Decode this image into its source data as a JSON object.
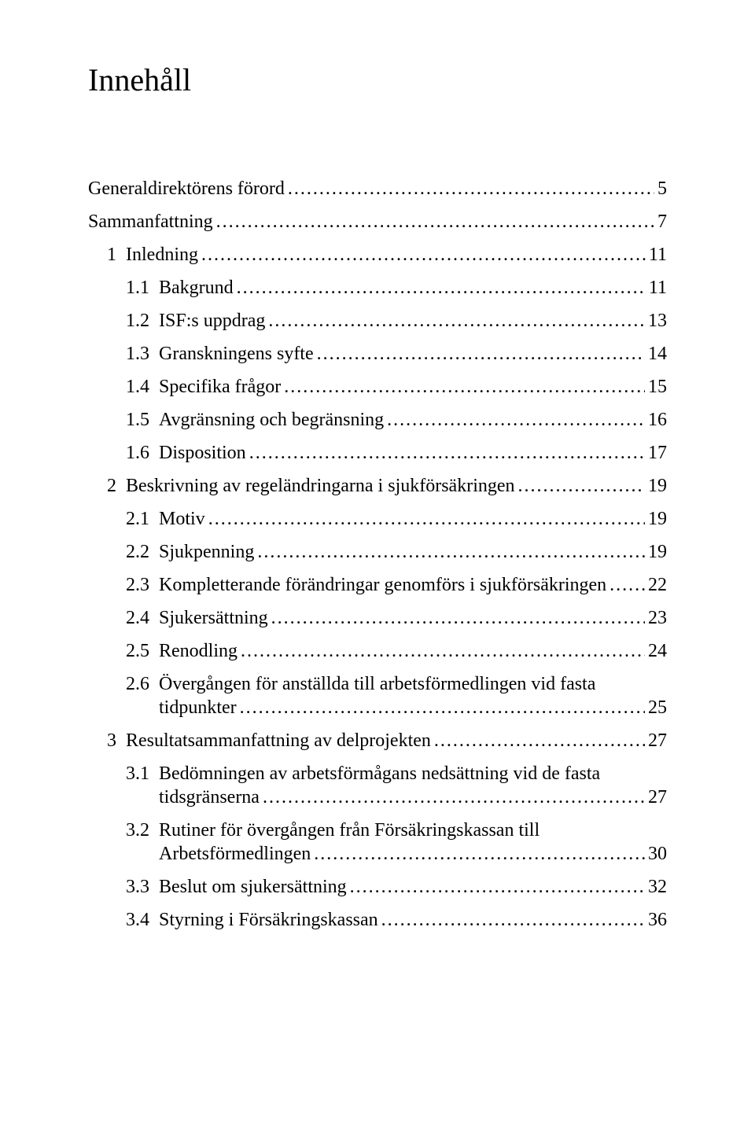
{
  "title": "Innehåll",
  "entries": [
    {
      "level": 0,
      "num": "",
      "label": "Generaldirektörens förord",
      "page": "5"
    },
    {
      "level": 0,
      "num": "",
      "label": "Sammanfattning",
      "page": "7"
    },
    {
      "level": 1,
      "num": "1",
      "label": "Inledning",
      "page": "11"
    },
    {
      "level": 2,
      "num": "1.1",
      "label": "Bakgrund",
      "page": "11"
    },
    {
      "level": 2,
      "num": "1.2",
      "label": "ISF:s uppdrag",
      "page": "13"
    },
    {
      "level": 2,
      "num": "1.3",
      "label": "Granskningens syfte",
      "page": "14"
    },
    {
      "level": 2,
      "num": "1.4",
      "label": "Specifika frågor",
      "page": "15"
    },
    {
      "level": 2,
      "num": "1.5",
      "label": "Avgränsning och begränsning",
      "page": "16"
    },
    {
      "level": 2,
      "num": "1.6",
      "label": "Disposition",
      "page": "17"
    },
    {
      "level": 1,
      "num": "2",
      "label": "Beskrivning av regeländringarna i sjukförsäkringen",
      "page": "19"
    },
    {
      "level": 2,
      "num": "2.1",
      "label": "Motiv",
      "page": "19"
    },
    {
      "level": 2,
      "num": "2.2",
      "label": "Sjukpenning",
      "page": "19"
    },
    {
      "level": 2,
      "num": "2.3",
      "label": "Kompletterande förändringar genomförs i sjukförsäkringen",
      "page": "22"
    },
    {
      "level": 2,
      "num": "2.4",
      "label": "Sjukersättning",
      "page": "23"
    },
    {
      "level": 2,
      "num": "2.5",
      "label": "Renodling",
      "page": "24"
    },
    {
      "level": 2,
      "num": "2.6",
      "label": "Övergången för anställda till arbetsförmedlingen vid fasta",
      "cont": "tidpunkter",
      "page": "25"
    },
    {
      "level": 1,
      "num": "3",
      "label": "Resultatsammanfattning av delprojekten",
      "page": "27"
    },
    {
      "level": 2,
      "num": "3.1",
      "label": "Bedömningen av arbetsförmågans nedsättning vid de fasta",
      "cont": "tidsgränserna",
      "page": "27"
    },
    {
      "level": 2,
      "num": "3.2",
      "label": "Rutiner för övergången från Försäkringskassan till",
      "cont": "Arbetsförmedlingen",
      "page": "30"
    },
    {
      "level": 2,
      "num": "3.3",
      "label": "Beslut om sjukersättning",
      "page": "32"
    },
    {
      "level": 2,
      "num": "3.4",
      "label": "Styrning i Försäkringskassan",
      "page": "36"
    }
  ]
}
